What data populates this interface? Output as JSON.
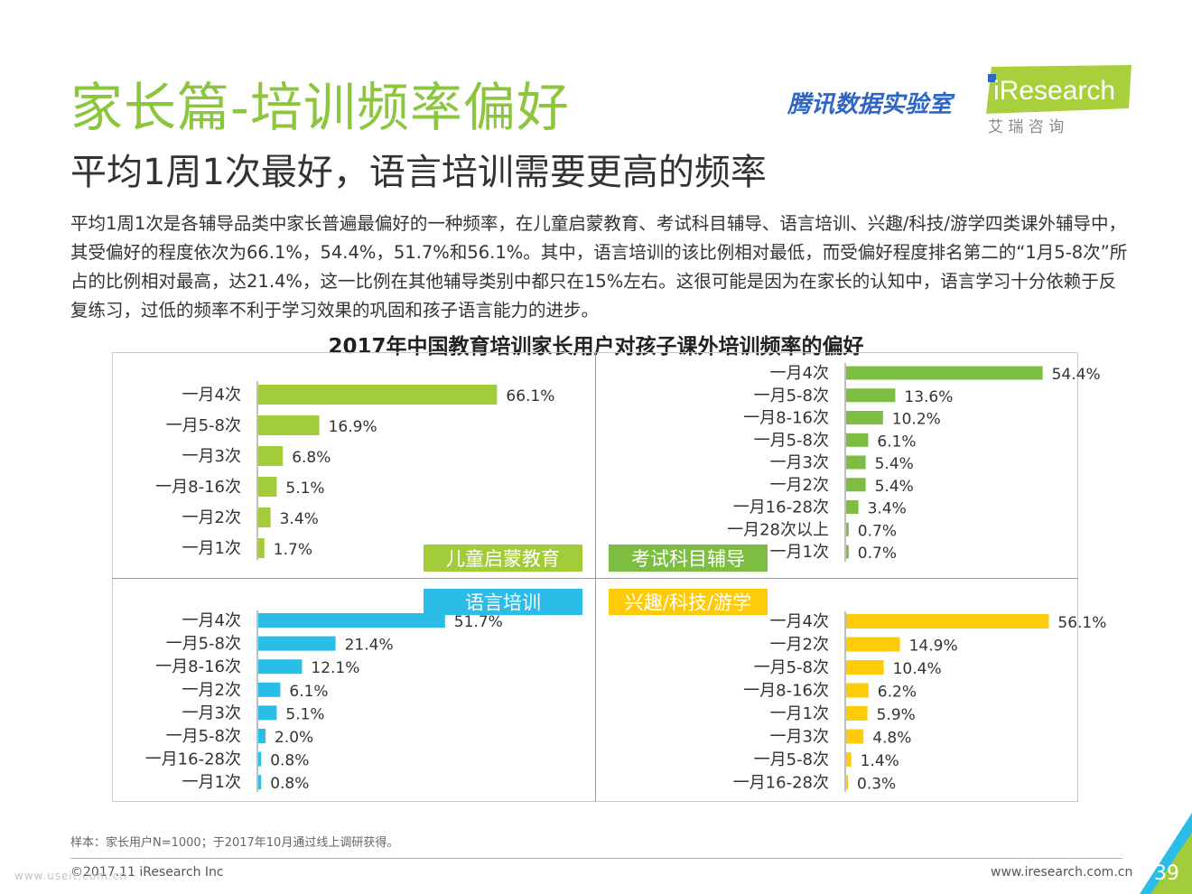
{
  "header": {
    "title": "家长篇-培训频率偏好",
    "subtitle": "平均1周1次最好，语言培训需要更高的频率",
    "paragraph": "平均1周1次是各辅导品类中家长普遍最偏好的一种频率，在儿童启蒙教育、考试科目辅导、语言培训、兴趣/科技/游学四类课外辅导中，其受偏好的程度依次为66.1%，54.4%，51.7%和56.1%。其中，语言培训的该比例相对最低，而受偏好程度排名第二的“1月5-8次”所占的比例相对最高，达21.4%，这一比例在其他辅导类别中都只在15%左右。这很可能是因为在家长的认知中，语言学习十分依赖于反复练习，过低的频率不利于学习效果的巩固和孩子语言能力的进步。"
  },
  "logos": {
    "tencent": "腾讯数据实验室",
    "iresearch_text": "iResearch",
    "iresearch_sub": "艾 瑞 咨 询"
  },
  "chart_data": {
    "type": "bar",
    "orientation": "horizontal",
    "title": "2017年中国教育培训家长用户对孩子课外培训频率的偏好",
    "panels": [
      {
        "name": "儿童启蒙教育",
        "color": "#a3cc3a",
        "categories": [
          "一月4次",
          "一月5-8次",
          "一月3次",
          "一月8-16次",
          "一月2次",
          "一月1次"
        ],
        "values": [
          66.1,
          16.9,
          6.8,
          5.1,
          3.4,
          1.7
        ],
        "labels": [
          "66.1%",
          "16.9%",
          "6.8%",
          "5.1%",
          "3.4%",
          "1.7%"
        ]
      },
      {
        "name": "考试科目辅导",
        "color": "#7cbd42",
        "categories": [
          "一月4次",
          "一月5-8次",
          "一月8-16次",
          "一月5-8次",
          "一月3次",
          "一月2次",
          "一月16-28次",
          "一月28次以上",
          "一月1次"
        ],
        "values": [
          54.4,
          13.6,
          10.2,
          6.1,
          5.4,
          5.4,
          3.4,
          0.7,
          0.7
        ],
        "labels": [
          "54.4%",
          "13.6%",
          "10.2%",
          "6.1%",
          "5.4%",
          "5.4%",
          "3.4%",
          "0.7%",
          "0.7%"
        ]
      },
      {
        "name": "语言培训",
        "color": "#29bde8",
        "categories": [
          "一月4次",
          "一月5-8次",
          "一月8-16次",
          "一月2次",
          "一月3次",
          "一月5-8次",
          "一月16-28次",
          "一月1次"
        ],
        "values": [
          51.7,
          21.4,
          12.1,
          6.1,
          5.1,
          2.0,
          0.8,
          0.8
        ],
        "labels": [
          "51.7%",
          "21.4%",
          "12.1%",
          "6.1%",
          "5.1%",
          "2.0%",
          "0.8%",
          "0.8%"
        ]
      },
      {
        "name": "兴趣/科技/游学",
        "color": "#fecb0a",
        "categories": [
          "一月4次",
          "一月2次",
          "一月5-8次",
          "一月8-16次",
          "一月1次",
          "一月3次",
          "一月5-8次",
          "一月16-28次"
        ],
        "values": [
          56.1,
          14.9,
          10.4,
          6.2,
          5.9,
          4.8,
          1.4,
          0.3
        ],
        "labels": [
          "56.1%",
          "14.9%",
          "10.4%",
          "6.2%",
          "5.9%",
          "4.8%",
          "1.4%",
          "0.3%"
        ]
      }
    ]
  },
  "footer": {
    "sample": "样本：家长用户N=1000；于2017年10月通过线上调研获得。",
    "copyright": "©2017.11 iResearch Inc",
    "website": "www.iresearch.com.cn",
    "page": "39",
    "watermark": "www.useit.com.cn"
  },
  "colors": {
    "title_green": "#8cc63f",
    "brand_blue": "#2f66c6",
    "accent_green": "#a3cc3a",
    "accent_blue": "#29bde8"
  }
}
